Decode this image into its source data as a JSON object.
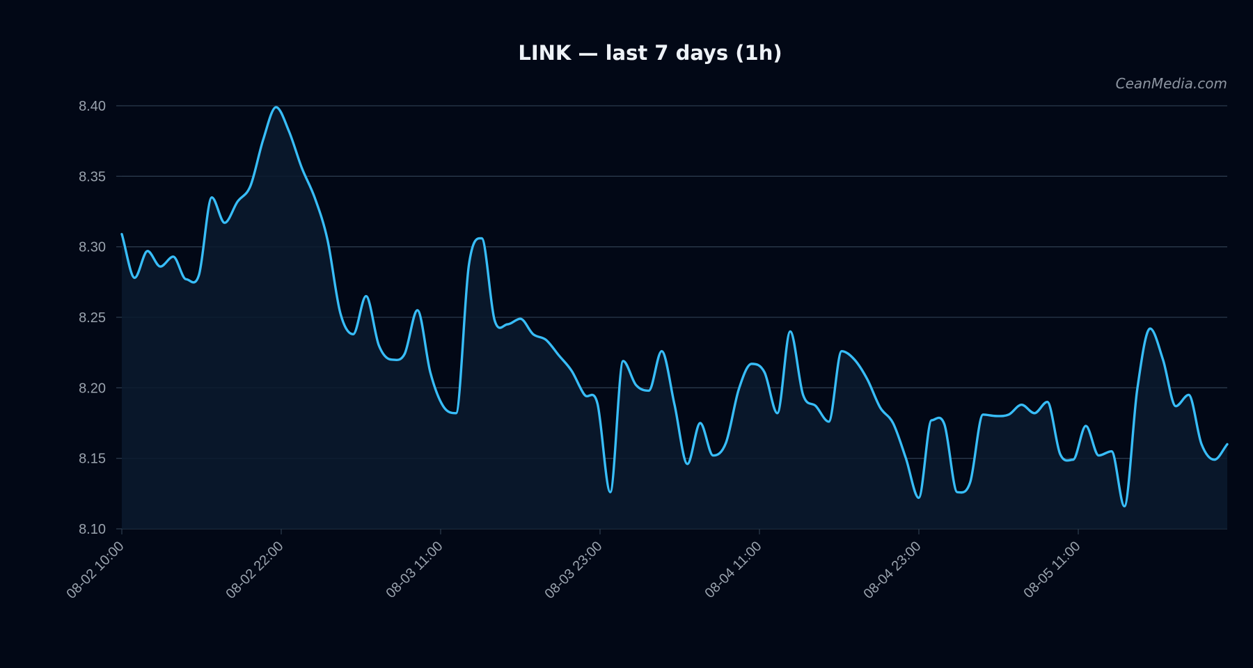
{
  "colors": {
    "background": "#020816",
    "line": "#38bdf8",
    "area_fill": "#0a1a2e",
    "grid": "#2b3a4c",
    "tick_text": "#9aa3ae",
    "title_text": "#eef2f7",
    "watermark_text": "#8d95a1"
  },
  "watermark": "CeanMedia.com",
  "chart_data": {
    "type": "area",
    "title": "LINK — last 7 days (1h)",
    "xlabel": "",
    "ylabel": "",
    "ylim": [
      8.1,
      8.4
    ],
    "grid": true,
    "legend": "none",
    "yticks": [
      8.1,
      8.15,
      8.2,
      8.25,
      8.3,
      8.35,
      8.4
    ],
    "ytick_labels": [
      "8.10",
      "8.15",
      "8.20",
      "8.25",
      "8.30",
      "8.35",
      "8.40"
    ],
    "xticks": [
      "08-02 10:00",
      "08-02 22:00",
      "08-03 11:00",
      "08-03 23:00",
      "08-04 11:00",
      "08-04 23:00",
      "08-05 11:00"
    ],
    "x_start": "08-02 10:00",
    "interval": "1h",
    "series": [
      {
        "values": [
          8.309,
          8.278,
          8.297,
          8.286,
          8.293,
          8.277,
          8.28,
          8.335,
          8.317,
          8.332,
          8.343,
          8.376,
          8.399,
          8.382,
          8.356,
          8.335,
          8.305,
          8.253,
          8.238,
          8.265,
          8.23,
          8.22,
          8.224,
          8.255,
          8.211,
          8.187,
          8.182,
          8.287,
          8.306,
          8.248,
          8.245,
          8.249,
          8.238,
          8.234,
          8.223,
          8.212,
          8.195,
          8.189,
          8.126,
          8.219,
          8.202,
          8.198,
          8.226,
          8.188,
          8.146,
          8.175,
          8.152,
          8.161,
          8.199,
          8.217,
          8.211,
          8.182,
          8.24,
          8.195,
          8.187,
          8.176,
          8.226,
          8.22,
          8.206,
          8.186,
          8.175,
          8.15,
          8.122,
          8.177,
          8.174,
          8.126,
          8.133,
          8.181,
          8.18,
          8.181,
          8.188,
          8.182,
          8.19,
          8.153,
          8.149,
          8.173,
          8.152,
          8.155,
          8.116,
          8.199,
          8.242,
          8.22,
          8.187,
          8.195,
          8.16,
          8.149,
          8.16
        ]
      }
    ]
  }
}
